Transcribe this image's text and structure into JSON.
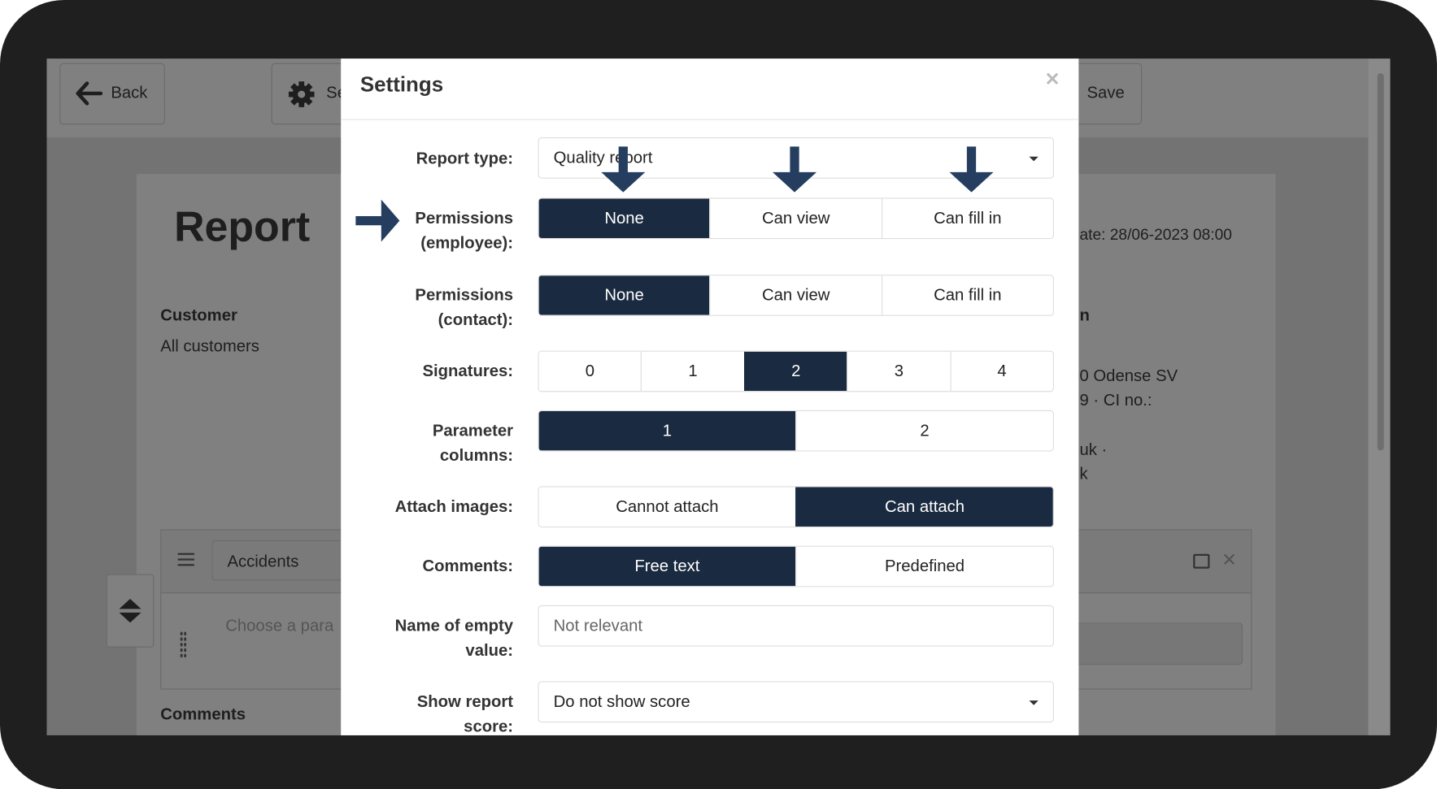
{
  "background": {
    "back_label": "Back",
    "settings_label": "Se",
    "save_label": "Save",
    "report_title": "Report",
    "customer_label": "Customer",
    "customer_value": "All customers",
    "date_text": "ate: 28/06-2023 08:00",
    "right_heading": "n",
    "address_line1": "0 Odense SV",
    "address_line2": "9 · CI no.:",
    "contact_line1": "uk ·",
    "contact_line2": "k",
    "section_name": "Accidents",
    "parameter_placeholder": "Choose a para",
    "comments_label": "Comments"
  },
  "modal": {
    "title": "Settings",
    "close_icon": "close-icon",
    "rows": {
      "report_type": {
        "label": "Report type:",
        "value": "Quality report"
      },
      "perm_employee": {
        "label1": "Permissions",
        "label2": "(employee):",
        "options": [
          "None",
          "Can view",
          "Can fill in"
        ],
        "selected": "None"
      },
      "perm_contact": {
        "label1": "Permissions",
        "label2": "(contact):",
        "options": [
          "None",
          "Can view",
          "Can fill in"
        ],
        "selected": "None"
      },
      "signatures": {
        "label": "Signatures:",
        "options": [
          "0",
          "1",
          "2",
          "3",
          "4"
        ],
        "selected": "2"
      },
      "param_columns": {
        "label1": "Parameter",
        "label2": "columns:",
        "options": [
          "1",
          "2"
        ],
        "selected": "1"
      },
      "attach_images": {
        "label": "Attach images:",
        "options": [
          "Cannot attach",
          "Can attach"
        ],
        "selected": "Can attach"
      },
      "comments": {
        "label": "Comments:",
        "options": [
          "Free text",
          "Predefined"
        ],
        "selected": "Free text"
      },
      "empty_value": {
        "label1": "Name of empty",
        "label2": "value:",
        "placeholder": "Not relevant"
      },
      "report_score": {
        "label1": "Show report",
        "label2": "score:",
        "value": "Do not show score"
      }
    }
  },
  "colors": {
    "active": "#1a2a40",
    "annotation_arrow": "#253e60",
    "bezel": "#201f20"
  }
}
